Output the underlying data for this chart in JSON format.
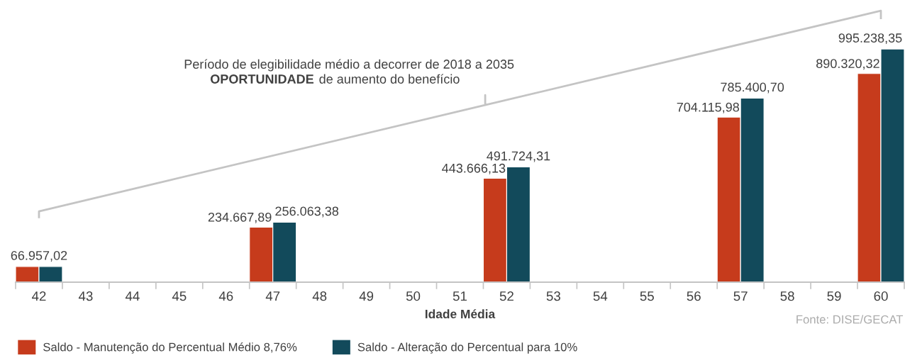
{
  "chart_data": {
    "type": "bar",
    "xlabel": "Idade Média",
    "categories": [
      "42",
      "43",
      "44",
      "45",
      "46",
      "47",
      "48",
      "49",
      "50",
      "51",
      "52",
      "53",
      "54",
      "55",
      "56",
      "57",
      "58",
      "59",
      "60"
    ],
    "series": [
      {
        "name": "Saldo - Manutenção do Percentual Médio 8,76%",
        "color": "#c63b1c",
        "values": [
          66957.02,
          null,
          null,
          null,
          null,
          234667.89,
          null,
          null,
          null,
          null,
          443666.13,
          null,
          null,
          null,
          null,
          704115.98,
          null,
          null,
          890320.32
        ],
        "value_labels": [
          "66.957,02",
          null,
          null,
          null,
          null,
          "234.667,89",
          null,
          null,
          null,
          null,
          "443.666,13",
          null,
          null,
          null,
          null,
          "704.115,98",
          null,
          null,
          "890.320,32"
        ]
      },
      {
        "name": "Saldo - Alteração do Percentual para 10%",
        "color": "#124a5b",
        "values": [
          66957.02,
          null,
          null,
          null,
          null,
          256063.38,
          null,
          null,
          null,
          null,
          491724.31,
          null,
          null,
          null,
          null,
          785400.7,
          null,
          null,
          995238.35
        ],
        "value_labels": [
          null,
          null,
          null,
          null,
          null,
          "256.063,38",
          null,
          null,
          null,
          null,
          "491.724,31",
          null,
          null,
          null,
          null,
          "785.400,70",
          null,
          null,
          "995.238,35"
        ]
      }
    ],
    "annotations": [
      "Período de elegibilidade médio a decorrer de 2018 a 2035",
      "OPORTUNIDADE de aumento do benefício",
      "Fonte: DISE/GECAT"
    ],
    "tick_labels": "x",
    "legend": "bottom left"
  }
}
